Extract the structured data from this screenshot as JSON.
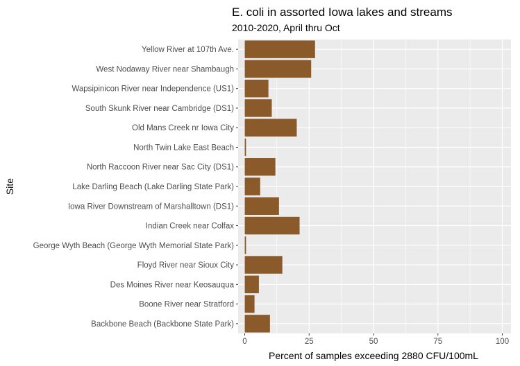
{
  "chart_data": {
    "type": "bar",
    "orientation": "horizontal",
    "title": "E. coli in assorted Iowa lakes and streams",
    "subtitle": "2010-2020, April thru Oct",
    "xlabel": "Percent of samples exceeding 2880 CFU/100mL",
    "ylabel": "Site",
    "xlim": [
      0,
      100
    ],
    "xticks": [
      0,
      25,
      50,
      75,
      100
    ],
    "grid": true,
    "bar_color": "#8b5a2b",
    "panel_color": "#ebebeb",
    "categories": [
      "Yellow River at 107th Ave.",
      "West Nodaway River near Shambaugh",
      "Wapsipinicon River near Independence (US1)",
      "South Skunk River near Cambridge (DS1)",
      "Old Mans Creek nr Iowa City",
      "North Twin Lake East Beach",
      "North Raccoon River near Sac City (DS1)",
      "Lake Darling Beach (Lake Darling State Park)",
      "Iowa River Downstream of Marshalltown (DS1)",
      "Indian Creek near Colfax",
      "George Wyth Beach (George Wyth Memorial State Park)",
      "Floyd River near Sioux City",
      "Des Moines River near Keosauqua",
      "Boone River near Stratford",
      "Backbone Beach (Backbone State Park)"
    ],
    "values": [
      27.3,
      25.8,
      9.2,
      10.5,
      20.2,
      0.5,
      11.9,
      6.0,
      13.3,
      21.3,
      0.5,
      14.6,
      5.5,
      3.8,
      9.8
    ]
  }
}
